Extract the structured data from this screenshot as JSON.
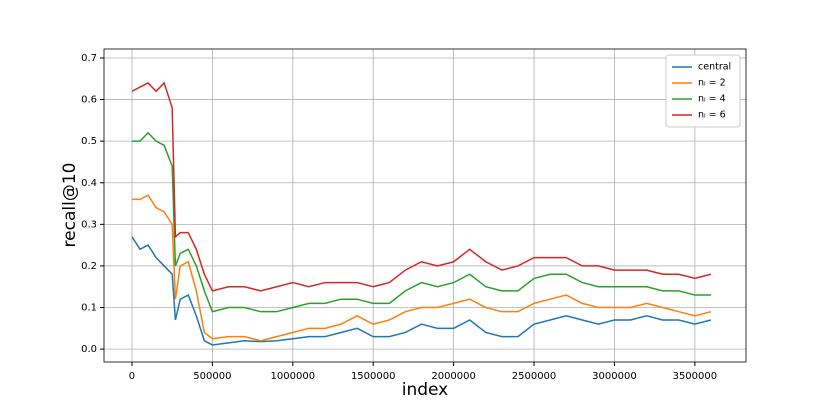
{
  "chart_data": {
    "type": "line",
    "xlabel": "index",
    "ylabel": "recall@10",
    "x": [
      0,
      50000,
      100000,
      150000,
      200000,
      250000,
      270000,
      300000,
      350000,
      400000,
      450000,
      500000,
      600000,
      700000,
      800000,
      900000,
      1000000,
      1100000,
      1200000,
      1300000,
      1400000,
      1500000,
      1600000,
      1700000,
      1800000,
      1900000,
      2000000,
      2100000,
      2200000,
      2300000,
      2400000,
      2500000,
      2600000,
      2700000,
      2800000,
      2900000,
      3000000,
      3100000,
      3200000,
      3300000,
      3400000,
      3500000,
      3600000
    ],
    "series": [
      {
        "name": "central",
        "color": "#1f77b4",
        "values": [
          0.27,
          0.24,
          0.25,
          0.22,
          0.2,
          0.18,
          0.07,
          0.12,
          0.13,
          0.08,
          0.02,
          0.01,
          0.015,
          0.02,
          0.018,
          0.02,
          0.025,
          0.03,
          0.03,
          0.04,
          0.05,
          0.03,
          0.03,
          0.04,
          0.06,
          0.05,
          0.05,
          0.07,
          0.04,
          0.03,
          0.03,
          0.06,
          0.07,
          0.08,
          0.07,
          0.06,
          0.07,
          0.07,
          0.08,
          0.07,
          0.07,
          0.06,
          0.07
        ]
      },
      {
        "name": "nₗ = 2",
        "color": "#ff7f0e",
        "values": [
          0.36,
          0.36,
          0.37,
          0.34,
          0.33,
          0.3,
          0.12,
          0.2,
          0.21,
          0.14,
          0.04,
          0.025,
          0.03,
          0.03,
          0.02,
          0.03,
          0.04,
          0.05,
          0.05,
          0.06,
          0.08,
          0.06,
          0.07,
          0.09,
          0.1,
          0.1,
          0.11,
          0.12,
          0.1,
          0.09,
          0.09,
          0.11,
          0.12,
          0.13,
          0.11,
          0.1,
          0.1,
          0.1,
          0.11,
          0.1,
          0.09,
          0.08,
          0.09
        ]
      },
      {
        "name": "nₗ = 4",
        "color": "#2ca02c",
        "values": [
          0.5,
          0.5,
          0.52,
          0.5,
          0.49,
          0.44,
          0.2,
          0.23,
          0.24,
          0.2,
          0.14,
          0.09,
          0.1,
          0.1,
          0.09,
          0.09,
          0.1,
          0.11,
          0.11,
          0.12,
          0.12,
          0.11,
          0.11,
          0.14,
          0.16,
          0.15,
          0.16,
          0.18,
          0.15,
          0.14,
          0.14,
          0.17,
          0.18,
          0.18,
          0.16,
          0.15,
          0.15,
          0.15,
          0.15,
          0.14,
          0.14,
          0.13,
          0.13
        ]
      },
      {
        "name": "nₗ = 6",
        "color": "#d62728",
        "values": [
          0.62,
          0.63,
          0.64,
          0.62,
          0.64,
          0.58,
          0.27,
          0.28,
          0.28,
          0.24,
          0.18,
          0.14,
          0.15,
          0.15,
          0.14,
          0.15,
          0.16,
          0.15,
          0.16,
          0.16,
          0.16,
          0.15,
          0.16,
          0.19,
          0.21,
          0.2,
          0.21,
          0.24,
          0.21,
          0.19,
          0.2,
          0.22,
          0.22,
          0.22,
          0.2,
          0.2,
          0.19,
          0.19,
          0.19,
          0.18,
          0.18,
          0.17,
          0.18
        ]
      }
    ],
    "xlim": [
      -174000,
      3818000
    ],
    "ylim": [
      -0.031,
      0.7216
    ],
    "xticks": [
      0,
      500000,
      1000000,
      1500000,
      2000000,
      2500000,
      3000000,
      3500000
    ],
    "yticks": [
      0.0,
      0.1,
      0.2,
      0.3,
      0.4,
      0.5,
      0.6,
      0.7
    ],
    "grid": true,
    "legend": "upper right"
  }
}
